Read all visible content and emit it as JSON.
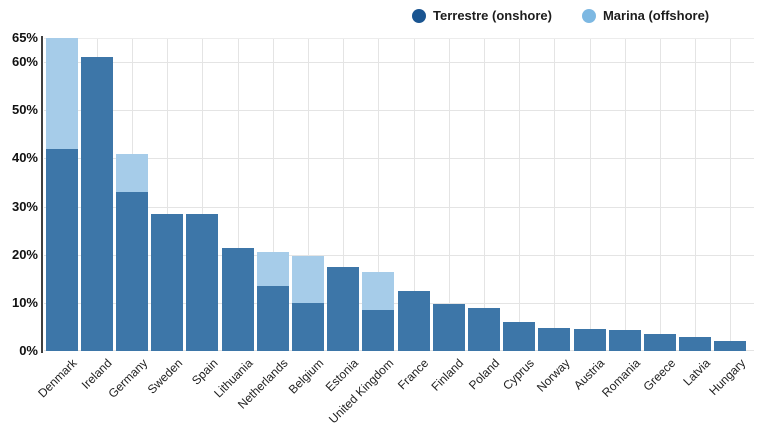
{
  "legend": {
    "items": [
      {
        "id": "onshore",
        "label": "Terrestre (onshore)",
        "dot_color": "#1a5591"
      },
      {
        "id": "offshore",
        "label": "Marina (offshore)",
        "dot_color": "#7db8e2"
      }
    ]
  },
  "colors": {
    "grid": "#e4e4e4",
    "grid_top": "#ececec",
    "axis": "#3f3f3f",
    "tick_label": "#111111",
    "category_label": "#222222",
    "background": "#ffffff"
  },
  "chart_data": {
    "type": "bar",
    "stacked": true,
    "title": "",
    "xlabel": "",
    "ylabel": "",
    "ylim": [
      0,
      65
    ],
    "grid": true,
    "legend_position": "top",
    "y_ticks": [
      "0%",
      "10%",
      "20%",
      "30%",
      "40%",
      "50%",
      "60%",
      "65%"
    ],
    "y_tick_values": [
      0,
      10,
      20,
      30,
      40,
      50,
      60,
      65
    ],
    "categories": [
      "Denmark",
      "Ireland",
      "Germany",
      "Sweden",
      "Spain",
      "Lithuania",
      "Netherlands",
      "Belgium",
      "Estonia",
      "United Kingdom",
      "France",
      "Finland",
      "Poland",
      "Cyprus",
      "Norway",
      "Austria",
      "Romania",
      "Greece",
      "Latvia",
      "Hungary"
    ],
    "series": [
      {
        "name": "Terrestre (onshore)",
        "color": "#3d76a8",
        "values": [
          42,
          61,
          33,
          28.5,
          28.5,
          21.3,
          13.5,
          10,
          17.5,
          8.5,
          12.5,
          9.8,
          9,
          6,
          4.8,
          4.5,
          4.3,
          3.5,
          3,
          2
        ]
      },
      {
        "name": "Marina (offshore)",
        "color": "#a6cce9",
        "values": [
          23,
          0,
          8,
          0,
          0,
          0,
          7,
          9.7,
          0,
          8,
          0,
          0,
          0,
          0,
          0,
          0,
          0,
          0,
          0,
          0
        ]
      }
    ]
  }
}
